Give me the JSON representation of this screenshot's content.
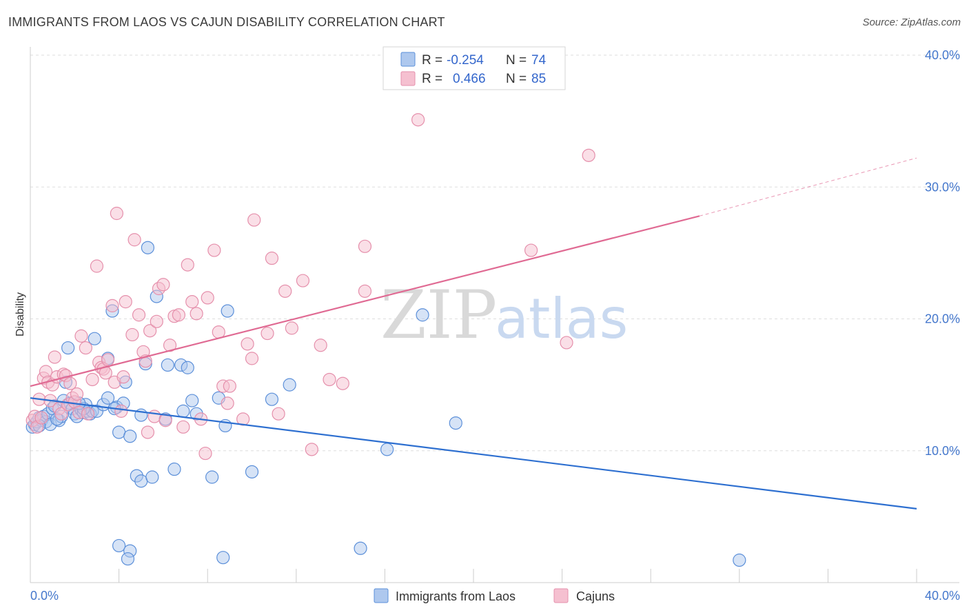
{
  "title": "IMMIGRANTS FROM LAOS VS CAJUN DISABILITY CORRELATION CHART",
  "source": "Source: ZipAtlas.com",
  "watermark": {
    "zip": "ZIP",
    "atlas": "atlas"
  },
  "colors": {
    "blue": "#5b8fd9",
    "blue_fill": "#aec8ee",
    "blue_line": "#2d6fd0",
    "pink": "#e58fab",
    "pink_fill": "#f5c0d0",
    "pink_line": "#e06a93",
    "grid": "#dddddd",
    "tick_text": "#4477cc"
  },
  "legend": {
    "rows": [
      {
        "r_label": "R =",
        "r_value": "-0.254",
        "n_label": "N =",
        "n_value": "74"
      },
      {
        "r_label": "R =",
        "r_value": "0.466",
        "n_label": "N =",
        "n_value": "85"
      }
    ]
  },
  "bottom_legend": [
    "Immigrants from Laos",
    "Cajuns"
  ],
  "chart_data": {
    "type": "scatter",
    "title": "IMMIGRANTS FROM LAOS VS CAJUN DISABILITY CORRELATION CHART",
    "xlabel": "",
    "ylabel": "Disability",
    "xlim": [
      0,
      40
    ],
    "ylim": [
      0,
      40
    ],
    "x_tick_labels": [
      "0.0%",
      "40.0%"
    ],
    "y_tick_labels": [
      "10.0%",
      "20.0%",
      "30.0%",
      "40.0%"
    ],
    "y_ticks": [
      10,
      20,
      30,
      40
    ],
    "grid": true,
    "legend_position": "top-center",
    "series": [
      {
        "name": "Immigrants from Laos",
        "R": -0.254,
        "N": 74,
        "trend": {
          "x0": 0,
          "y0": 14.0,
          "x1": 40,
          "y1": 5.6
        },
        "points": [
          [
            0.1,
            11.8
          ],
          [
            0.2,
            12.0
          ],
          [
            0.3,
            12.2
          ],
          [
            0.4,
            12.5
          ],
          [
            0.5,
            12.3
          ],
          [
            0.6,
            12.6
          ],
          [
            0.7,
            12.2
          ],
          [
            0.8,
            12.8
          ],
          [
            0.9,
            12.0
          ],
          [
            1.0,
            13.2
          ],
          [
            1.1,
            13.4
          ],
          [
            1.3,
            12.3
          ],
          [
            1.4,
            12.6
          ],
          [
            1.5,
            13.8
          ],
          [
            1.6,
            15.2
          ],
          [
            1.7,
            13.5
          ],
          [
            1.8,
            13.6
          ],
          [
            1.9,
            13.2
          ],
          [
            2.0,
            12.8
          ],
          [
            2.1,
            12.6
          ],
          [
            2.3,
            13.1
          ],
          [
            2.4,
            12.9
          ],
          [
            2.5,
            13.5
          ],
          [
            2.6,
            13.0
          ],
          [
            2.7,
            12.8
          ],
          [
            2.8,
            13.0
          ],
          [
            3.0,
            13.0
          ],
          [
            3.3,
            13.5
          ],
          [
            3.5,
            17.0
          ],
          [
            3.5,
            14.0
          ],
          [
            1.7,
            17.8
          ],
          [
            2.4,
            13.2
          ],
          [
            2.9,
            18.5
          ],
          [
            3.7,
            20.6
          ],
          [
            3.9,
            13.3
          ],
          [
            4.0,
            11.4
          ],
          [
            4.2,
            13.6
          ],
          [
            4.3,
            15.2
          ],
          [
            4.5,
            11.1
          ],
          [
            4.8,
            8.1
          ],
          [
            5.0,
            12.7
          ],
          [
            5.0,
            7.7
          ],
          [
            5.2,
            16.6
          ],
          [
            5.3,
            25.4
          ],
          [
            5.5,
            8.0
          ],
          [
            5.7,
            21.7
          ],
          [
            6.1,
            12.4
          ],
          [
            6.2,
            16.5
          ],
          [
            6.5,
            8.6
          ],
          [
            6.8,
            16.5
          ],
          [
            6.9,
            13.0
          ],
          [
            7.1,
            16.3
          ],
          [
            7.3,
            13.8
          ],
          [
            7.5,
            12.8
          ],
          [
            8.2,
            8.0
          ],
          [
            8.5,
            14.0
          ],
          [
            8.8,
            11.9
          ],
          [
            8.9,
            20.6
          ],
          [
            10.0,
            8.4
          ],
          [
            10.9,
            13.9
          ],
          [
            11.7,
            15.0
          ],
          [
            16.1,
            10.1
          ],
          [
            17.7,
            20.3
          ],
          [
            19.2,
            12.1
          ],
          [
            4.0,
            2.8
          ],
          [
            4.5,
            2.4
          ],
          [
            8.7,
            1.9
          ],
          [
            14.9,
            2.6
          ],
          [
            32.0,
            1.7
          ],
          [
            3.8,
            13.2
          ],
          [
            2.2,
            13.6
          ],
          [
            1.2,
            12.4
          ],
          [
            0.4,
            11.9
          ],
          [
            4.4,
            1.8
          ]
        ]
      },
      {
        "name": "Cajuns",
        "R": 0.466,
        "N": 85,
        "trend": {
          "x0": 0,
          "y0": 14.9,
          "x1": 30.2,
          "y1": 27.8
        },
        "trend_dashed": {
          "x0": 30.2,
          "y0": 27.8,
          "x1": 40,
          "y1": 32.2
        },
        "points": [
          [
            0.1,
            12.3
          ],
          [
            0.2,
            12.6
          ],
          [
            0.3,
            11.8
          ],
          [
            0.4,
            13.9
          ],
          [
            0.5,
            12.5
          ],
          [
            0.6,
            15.5
          ],
          [
            0.7,
            16.0
          ],
          [
            0.8,
            15.2
          ],
          [
            0.9,
            13.8
          ],
          [
            1.0,
            15.0
          ],
          [
            1.1,
            17.1
          ],
          [
            1.2,
            15.6
          ],
          [
            1.3,
            13.2
          ],
          [
            1.4,
            12.8
          ],
          [
            1.5,
            15.8
          ],
          [
            1.6,
            15.7
          ],
          [
            1.7,
            13.5
          ],
          [
            1.8,
            15.1
          ],
          [
            1.9,
            14.0
          ],
          [
            2.0,
            13.7
          ],
          [
            2.1,
            14.3
          ],
          [
            2.2,
            12.9
          ],
          [
            2.3,
            18.7
          ],
          [
            2.5,
            17.8
          ],
          [
            2.6,
            12.8
          ],
          [
            2.8,
            15.4
          ],
          [
            3.0,
            24.0
          ],
          [
            3.1,
            16.7
          ],
          [
            3.2,
            16.3
          ],
          [
            3.3,
            16.2
          ],
          [
            3.4,
            15.9
          ],
          [
            3.5,
            16.9
          ],
          [
            3.7,
            21.0
          ],
          [
            3.8,
            15.2
          ],
          [
            3.9,
            28.0
          ],
          [
            4.1,
            13.0
          ],
          [
            4.2,
            15.6
          ],
          [
            4.3,
            21.3
          ],
          [
            4.6,
            18.8
          ],
          [
            4.7,
            26.0
          ],
          [
            4.9,
            20.3
          ],
          [
            5.1,
            17.5
          ],
          [
            5.2,
            16.8
          ],
          [
            5.3,
            11.4
          ],
          [
            5.4,
            19.1
          ],
          [
            5.6,
            12.6
          ],
          [
            5.7,
            19.8
          ],
          [
            5.8,
            22.3
          ],
          [
            6.0,
            22.6
          ],
          [
            6.1,
            12.3
          ],
          [
            6.3,
            18.0
          ],
          [
            6.5,
            20.2
          ],
          [
            6.7,
            20.3
          ],
          [
            6.9,
            11.8
          ],
          [
            7.1,
            24.1
          ],
          [
            7.3,
            21.3
          ],
          [
            7.5,
            20.4
          ],
          [
            7.7,
            12.4
          ],
          [
            7.9,
            9.8
          ],
          [
            8.0,
            21.6
          ],
          [
            8.3,
            25.2
          ],
          [
            8.5,
            19.0
          ],
          [
            8.7,
            14.9
          ],
          [
            8.9,
            13.6
          ],
          [
            9.0,
            14.9
          ],
          [
            9.6,
            12.4
          ],
          [
            9.8,
            18.1
          ],
          [
            10.0,
            17.0
          ],
          [
            10.1,
            27.5
          ],
          [
            10.7,
            18.9
          ],
          [
            10.9,
            24.6
          ],
          [
            11.2,
            12.8
          ],
          [
            11.5,
            22.1
          ],
          [
            11.8,
            19.3
          ],
          [
            12.3,
            22.9
          ],
          [
            12.7,
            10.1
          ],
          [
            13.1,
            18.0
          ],
          [
            13.5,
            15.4
          ],
          [
            14.1,
            15.1
          ],
          [
            15.1,
            25.5
          ],
          [
            15.1,
            22.1
          ],
          [
            17.5,
            35.1
          ],
          [
            22.6,
            25.2
          ],
          [
            24.2,
            18.2
          ],
          [
            25.2,
            32.4
          ]
        ]
      }
    ]
  }
}
